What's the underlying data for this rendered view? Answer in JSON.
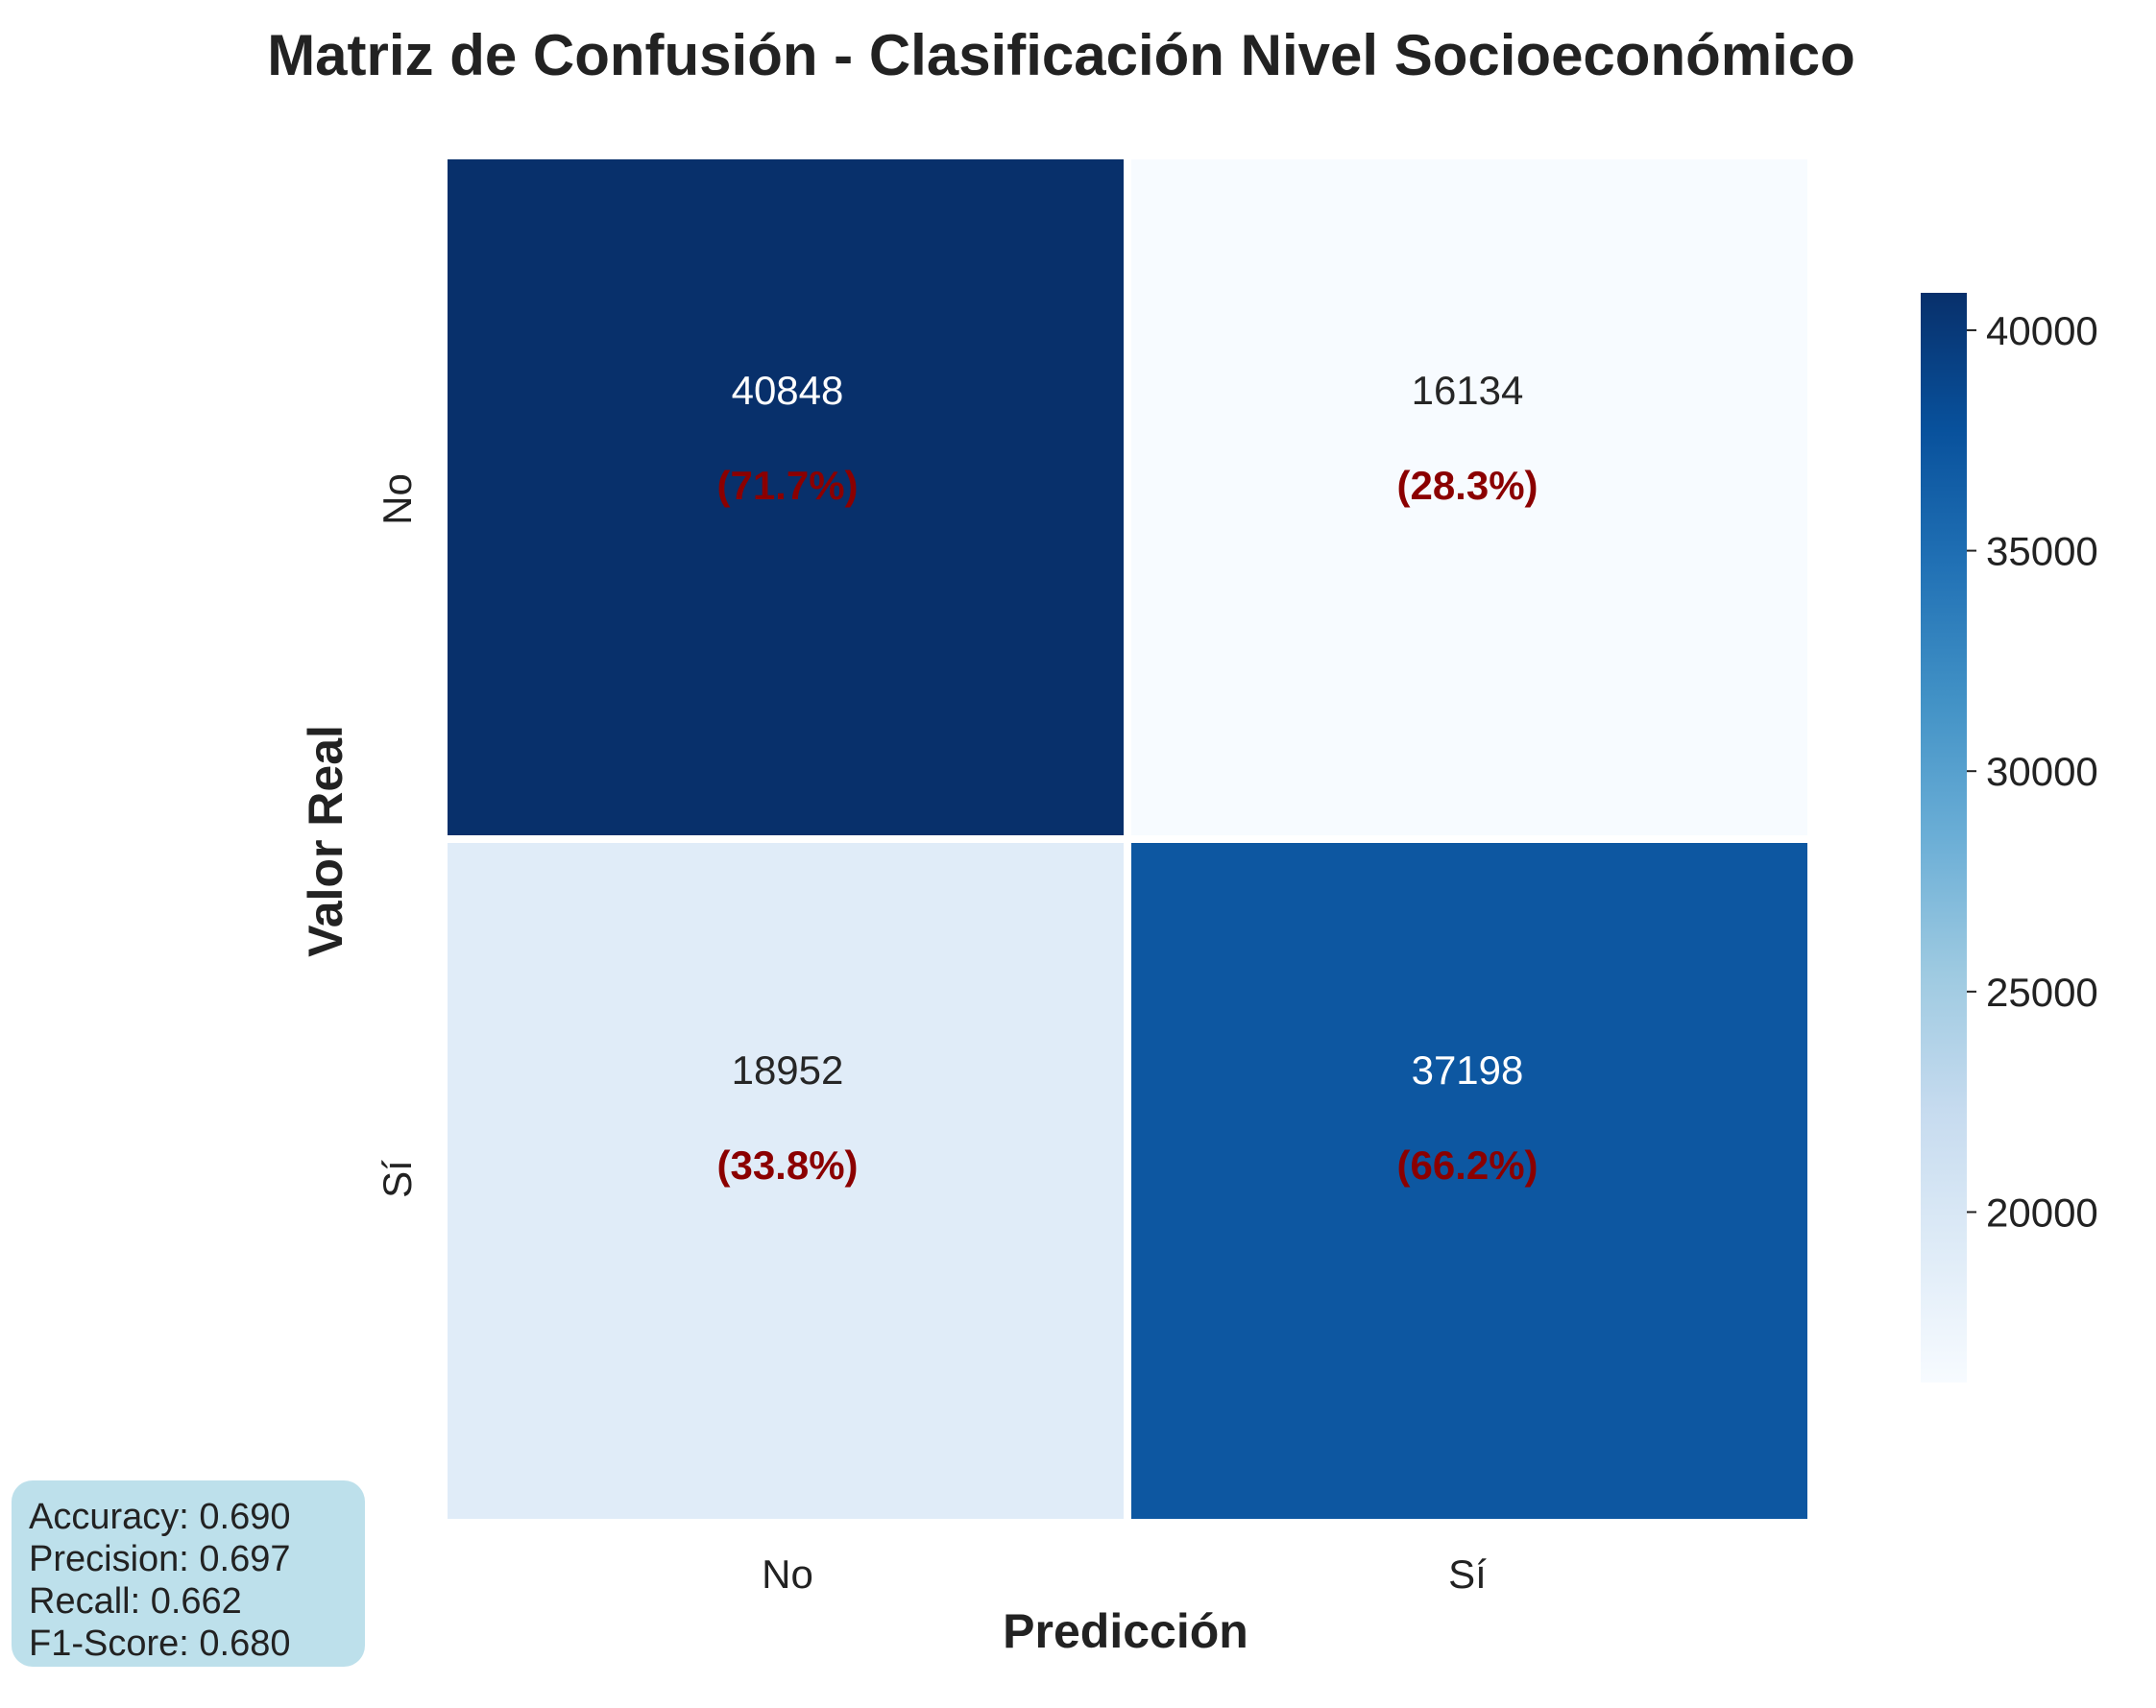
{
  "chart_data": {
    "type": "heatmap",
    "title": "Matriz de Confusión - Clasificación Nivel Socioeconómico",
    "xlabel": "Predicción",
    "ylabel": "Valor Real",
    "x_categories": [
      "No",
      "Sí"
    ],
    "y_categories": [
      "No",
      "Sí"
    ],
    "values": [
      [
        40848,
        16134
      ],
      [
        18952,
        37198
      ]
    ],
    "percent_labels": [
      [
        "(71.7%)",
        "(28.3%)"
      ],
      [
        "(33.8%)",
        "(66.2%)"
      ]
    ],
    "colorbar": {
      "range": [
        16134,
        40848
      ],
      "ticks": [
        20000,
        25000,
        30000,
        35000,
        40000
      ],
      "tick_labels": [
        "20000",
        "25000",
        "30000",
        "35000",
        "40000"
      ],
      "colormap": "Blues"
    },
    "colors": {
      "low": "#f7fbff",
      "high": "#08306b",
      "percent_text": "#8b0000"
    }
  },
  "metrics": {
    "accuracy": "Accuracy: 0.690",
    "precision": "Precision: 0.697",
    "recall": "Recall: 0.662",
    "f1": "F1-Score: 0.680"
  }
}
